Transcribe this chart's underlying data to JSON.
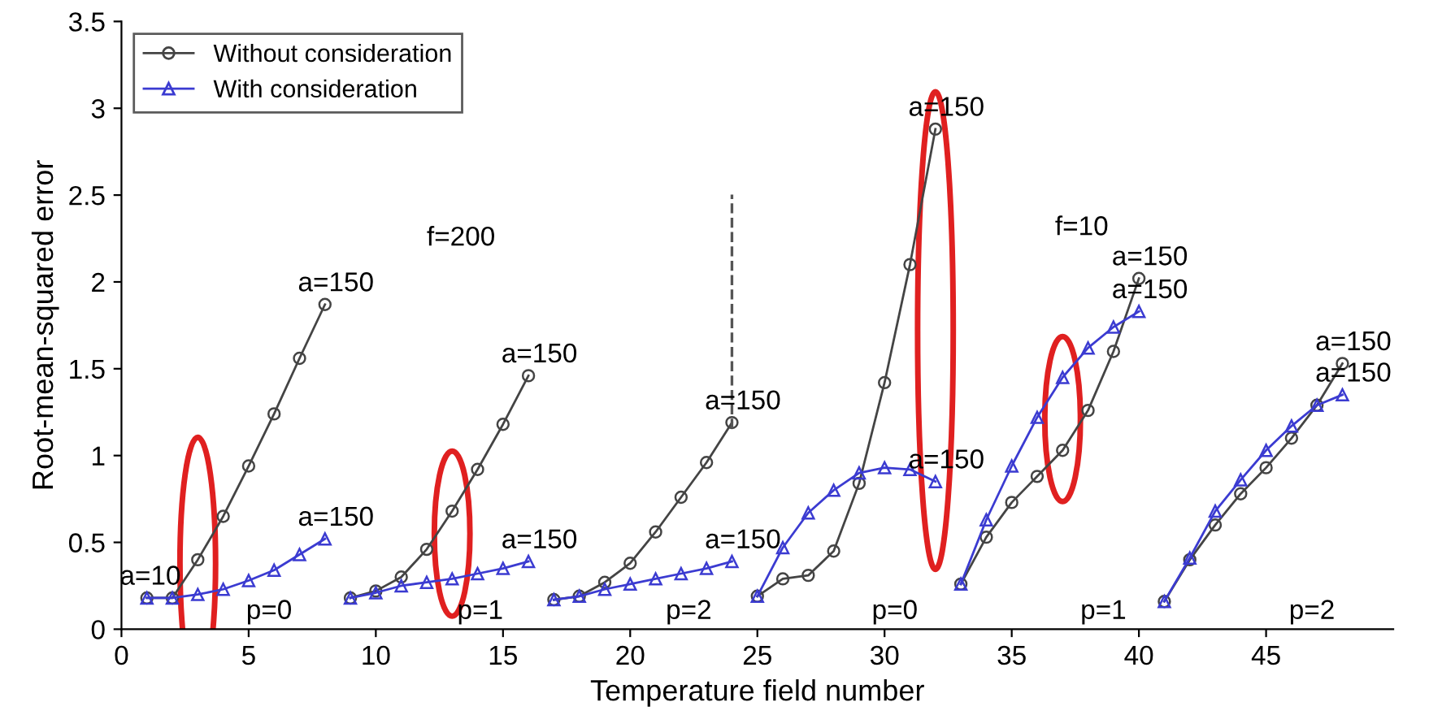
{
  "chart_data": {
    "type": "line",
    "xlabel": "Temperature field number",
    "ylabel": "Root-mean-squared error",
    "series": [
      {
        "name": "Without consideration",
        "color": "#444444",
        "marker": "circle",
        "x": [
          1,
          2,
          3,
          4,
          5,
          6,
          7,
          8
        ],
        "values": [
          0.18,
          0.18,
          0.4,
          0.65,
          0.94,
          1.24,
          1.56,
          1.87
        ]
      },
      {
        "name": "With consideration",
        "color": "#3b3bd1",
        "marker": "triangle",
        "x": [
          1,
          2,
          3,
          4,
          5,
          6,
          7,
          8
        ],
        "values": [
          0.18,
          0.18,
          0.2,
          0.23,
          0.28,
          0.34,
          0.43,
          0.52
        ]
      },
      {
        "color": "#444444",
        "marker": "circle",
        "x": [
          9,
          10,
          11,
          12,
          13,
          14,
          15,
          16
        ],
        "values": [
          0.18,
          0.22,
          0.3,
          0.46,
          0.68,
          0.92,
          1.18,
          1.46
        ]
      },
      {
        "color": "#3b3bd1",
        "marker": "triangle",
        "x": [
          9,
          10,
          11,
          12,
          13,
          14,
          15,
          16
        ],
        "values": [
          0.18,
          0.21,
          0.25,
          0.27,
          0.29,
          0.32,
          0.35,
          0.39
        ]
      },
      {
        "color": "#444444",
        "marker": "circle",
        "x": [
          17,
          18,
          19,
          20,
          21,
          22,
          23,
          24
        ],
        "values": [
          0.17,
          0.19,
          0.27,
          0.38,
          0.56,
          0.76,
          0.96,
          1.19
        ]
      },
      {
        "color": "#3b3bd1",
        "marker": "triangle",
        "x": [
          17,
          18,
          19,
          20,
          21,
          22,
          23,
          24
        ],
        "values": [
          0.17,
          0.19,
          0.23,
          0.26,
          0.29,
          0.32,
          0.35,
          0.39
        ]
      },
      {
        "color": "#444444",
        "marker": "circle",
        "x": [
          25,
          26,
          27,
          28,
          29,
          30,
          31,
          32
        ],
        "values": [
          0.19,
          0.29,
          0.31,
          0.45,
          0.84,
          1.42,
          2.1,
          2.88
        ]
      },
      {
        "color": "#3b3bd1",
        "marker": "triangle",
        "x": [
          25,
          26,
          27,
          28,
          29,
          30,
          31,
          32
        ],
        "values": [
          0.19,
          0.47,
          0.67,
          0.8,
          0.9,
          0.93,
          0.92,
          0.85
        ]
      },
      {
        "color": "#444444",
        "marker": "circle",
        "x": [
          33,
          34,
          35,
          36,
          37,
          38,
          39,
          40
        ],
        "values": [
          0.26,
          0.53,
          0.73,
          0.88,
          1.03,
          1.26,
          1.6,
          2.02
        ]
      },
      {
        "color": "#3b3bd1",
        "marker": "triangle",
        "x": [
          33,
          34,
          35,
          36,
          37,
          38,
          39,
          40
        ],
        "values": [
          0.26,
          0.63,
          0.94,
          1.22,
          1.45,
          1.62,
          1.74,
          1.83
        ]
      },
      {
        "color": "#444444",
        "marker": "circle",
        "x": [
          41,
          42,
          43,
          44,
          45,
          46,
          47,
          48
        ],
        "values": [
          0.16,
          0.4,
          0.6,
          0.78,
          0.93,
          1.1,
          1.29,
          1.53
        ]
      },
      {
        "color": "#3b3bd1",
        "marker": "triangle",
        "x": [
          41,
          42,
          43,
          44,
          45,
          46,
          47,
          48
        ],
        "values": [
          0.16,
          0.41,
          0.68,
          0.86,
          1.03,
          1.17,
          1.29,
          1.35
        ]
      }
    ],
    "xlim": [
      0,
      50
    ],
    "xticks": [
      0,
      5,
      10,
      15,
      20,
      25,
      30,
      35,
      40,
      45
    ],
    "ylim": [
      0,
      3.5
    ],
    "yticks": [
      0,
      0.5,
      1,
      1.5,
      2,
      2.5,
      3,
      3.5
    ],
    "legend": "top left",
    "ref_lines": [
      {
        "axis": "x",
        "value": 24,
        "color": "#555555",
        "line_style": "dashed"
      }
    ],
    "annotations": [
      {
        "text": "a=10",
        "x": 1,
        "y": 0.18
      },
      {
        "text": "a=150",
        "x": 8,
        "y": 1.87
      },
      {
        "text": "a=150",
        "x": 8,
        "y": 0.52
      },
      {
        "text": "a=150",
        "x": 16,
        "y": 1.46
      },
      {
        "text": "a=150",
        "x": 16,
        "y": 0.39
      },
      {
        "text": "a=150",
        "x": 24,
        "y": 1.19
      },
      {
        "text": "a=150",
        "x": 24,
        "y": 0.39
      },
      {
        "text": "a=150",
        "x": 32,
        "y": 2.88
      },
      {
        "text": "a=150",
        "x": 32,
        "y": 0.85
      },
      {
        "text": "a=150",
        "x": 40,
        "y": 2.02
      },
      {
        "text": "a=150",
        "x": 40,
        "y": 1.83
      },
      {
        "text": "a=150",
        "x": 48,
        "y": 1.53
      },
      {
        "text": "a=150",
        "x": 48,
        "y": 1.35
      },
      "f=200",
      "f=10",
      "p=0",
      "p=1",
      "p=2",
      "p=0",
      "p=1",
      "p=2"
    ]
  }
}
